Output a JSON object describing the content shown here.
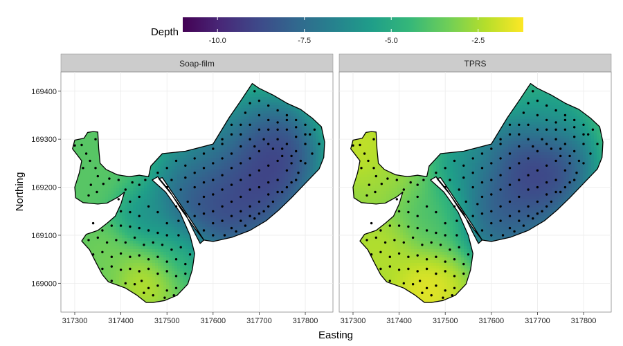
{
  "chart_data": {
    "type": "heatmap",
    "title": "",
    "xlabel": "Easting",
    "ylabel": "Northing",
    "xlim": [
      317270,
      317860
    ],
    "ylim": [
      168940,
      169440
    ],
    "x_ticks": [
      "317300",
      "317400",
      "317500",
      "317600",
      "317700",
      "317800"
    ],
    "x_tick_values": [
      317300,
      317400,
      317500,
      317600,
      317700,
      317800
    ],
    "y_ticks": [
      "169000",
      "169100",
      "169200",
      "169300",
      "169400"
    ],
    "y_tick_values": [
      169000,
      169100,
      169200,
      169300,
      169400
    ],
    "grid": true,
    "legend": {
      "title": "Depth",
      "placement": "top",
      "range": [
        -11,
        -1.2
      ],
      "ticks": [
        "-10.0",
        "-7.5",
        "-5.0",
        "-2.5"
      ],
      "tick_values": [
        -10,
        -7.5,
        -5,
        -2.5
      ],
      "palette": "viridis",
      "colors": [
        "#440154",
        "#482878",
        "#3e4989",
        "#31688e",
        "#26828e",
        "#1f9e89",
        "#35b779",
        "#6ece58",
        "#b5de2b",
        "#fde725"
      ]
    },
    "panels": [
      {
        "label": "Soap-film",
        "features": [
          {
            "x": 317665,
            "y": 169215,
            "depth": -10.8,
            "spread": 105
          },
          {
            "x": 317720,
            "y": 169275,
            "depth": -10.4,
            "spread": 80
          },
          {
            "x": 317590,
            "y": 169175,
            "depth": -9.6,
            "spread": 95
          },
          {
            "x": 317600,
            "y": 169300,
            "depth": -5.5,
            "spread": 110
          },
          {
            "x": 317460,
            "y": 169010,
            "depth": -1.6,
            "spread": 55
          },
          {
            "x": 317380,
            "y": 169060,
            "depth": -3.2,
            "spread": 55
          },
          {
            "x": 317450,
            "y": 169140,
            "depth": -6.3,
            "spread": 55
          },
          {
            "x": 317350,
            "y": 169260,
            "depth": -3.8,
            "spread": 90
          },
          {
            "x": 317520,
            "y": 169060,
            "depth": -4.8,
            "spread": 60
          }
        ],
        "background_depth": -3.8
      },
      {
        "label": "TPRS",
        "features": [
          {
            "x": 317710,
            "y": 169245,
            "depth": -10.6,
            "spread": 90
          },
          {
            "x": 317640,
            "y": 169200,
            "depth": -9.8,
            "spread": 95
          },
          {
            "x": 317630,
            "y": 169125,
            "depth": -8.4,
            "spread": 70
          },
          {
            "x": 317720,
            "y": 169360,
            "depth": -5.8,
            "spread": 80
          },
          {
            "x": 317555,
            "y": 169245,
            "depth": -6.2,
            "spread": 70
          },
          {
            "x": 317460,
            "y": 168985,
            "depth": -1.2,
            "spread": 60
          },
          {
            "x": 317360,
            "y": 169070,
            "depth": -2.1,
            "spread": 60
          },
          {
            "x": 317320,
            "y": 169280,
            "depth": -1.8,
            "spread": 60
          },
          {
            "x": 317470,
            "y": 169150,
            "depth": -4.2,
            "spread": 70
          },
          {
            "x": 317380,
            "y": 169225,
            "depth": -2.6,
            "spread": 60
          }
        ],
        "background_depth": -3.0
      }
    ],
    "boundary": {
      "outer": [
        [
          317340,
          169316
        ],
        [
          317350,
          169315
        ],
        [
          317352,
          169280
        ],
        [
          317355,
          169250
        ],
        [
          317368,
          169237
        ],
        [
          317392,
          169226
        ],
        [
          317418,
          169222
        ],
        [
          317440,
          169225
        ],
        [
          317460,
          169222
        ],
        [
          317465,
          169244
        ],
        [
          317490,
          169270
        ],
        [
          317540,
          169275
        ],
        [
          317600,
          169290
        ],
        [
          317635,
          169345
        ],
        [
          317660,
          169380
        ],
        [
          317685,
          169416
        ],
        [
          317700,
          169406
        ],
        [
          317730,
          169392
        ],
        [
          317760,
          169375
        ],
        [
          317790,
          169362
        ],
        [
          317815,
          169344
        ],
        [
          317835,
          169326
        ],
        [
          317842,
          169294
        ],
        [
          317840,
          169262
        ],
        [
          317830,
          169238
        ],
        [
          317802,
          169210
        ],
        [
          317770,
          169178
        ],
        [
          317742,
          169152
        ],
        [
          317715,
          169130
        ],
        [
          317680,
          169110
        ],
        [
          317642,
          169096
        ],
        [
          317600,
          169087
        ],
        [
          317580,
          169090
        ],
        [
          317560,
          169115
        ],
        [
          317530,
          169155
        ],
        [
          317505,
          169193
        ],
        [
          317480,
          169222
        ],
        [
          317468,
          169215
        ],
        [
          317497,
          169190
        ],
        [
          317528,
          169148
        ],
        [
          317550,
          169100
        ],
        [
          317560,
          169062
        ],
        [
          317555,
          169028
        ],
        [
          317545,
          168998
        ],
        [
          317522,
          168975
        ],
        [
          317495,
          168964
        ],
        [
          317470,
          168960
        ],
        [
          317455,
          168960
        ],
        [
          317435,
          168975
        ],
        [
          317410,
          168990
        ],
        [
          317390,
          168997
        ],
        [
          317373,
          169003
        ],
        [
          317360,
          169018
        ],
        [
          317345,
          169045
        ],
        [
          317332,
          169070
        ],
        [
          317315,
          169088
        ],
        [
          317325,
          169102
        ],
        [
          317350,
          169110
        ],
        [
          317370,
          169125
        ],
        [
          317388,
          169140
        ],
        [
          317400,
          169165
        ],
        [
          317408,
          169190
        ],
        [
          317395,
          169180
        ],
        [
          317370,
          169167
        ],
        [
          317350,
          169165
        ],
        [
          317318,
          169168
        ],
        [
          317302,
          169178
        ],
        [
          317300,
          169200
        ],
        [
          317310,
          169230
        ],
        [
          317315,
          169255
        ],
        [
          317295,
          169280
        ],
        [
          317300,
          169298
        ],
        [
          317320,
          169302
        ],
        [
          317328,
          169314
        ]
      ],
      "hole": [
        [
          317482,
          169218
        ],
        [
          317510,
          169185
        ],
        [
          317540,
          169145
        ],
        [
          317560,
          169105
        ],
        [
          317572,
          169083
        ],
        [
          317580,
          169090
        ],
        [
          317560,
          169120
        ],
        [
          317532,
          169160
        ],
        [
          317506,
          169197
        ],
        [
          317490,
          169220
        ]
      ]
    },
    "sample_points": [
      [
        317300,
        169287
      ],
      [
        317315,
        169288
      ],
      [
        317325,
        169270
      ],
      [
        317345,
        169300
      ],
      [
        317333,
        169255
      ],
      [
        317318,
        169240
      ],
      [
        317345,
        169240
      ],
      [
        317335,
        169205
      ],
      [
        317350,
        169223
      ],
      [
        317362,
        169207
      ],
      [
        317348,
        169190
      ],
      [
        317330,
        169183
      ],
      [
        317375,
        169218
      ],
      [
        317395,
        169215
      ],
      [
        317410,
        169195
      ],
      [
        317425,
        169210
      ],
      [
        317440,
        169205
      ],
      [
        317453,
        169215
      ],
      [
        317395,
        169175
      ],
      [
        317420,
        169170
      ],
      [
        317440,
        169180
      ],
      [
        317460,
        169160
      ],
      [
        317400,
        169150
      ],
      [
        317420,
        169148
      ],
      [
        317440,
        169140
      ],
      [
        317480,
        169148
      ],
      [
        317500,
        169125
      ],
      [
        317340,
        169125
      ],
      [
        317360,
        169110
      ],
      [
        317380,
        169120
      ],
      [
        317400,
        169120
      ],
      [
        317420,
        169118
      ],
      [
        317440,
        169115
      ],
      [
        317460,
        169110
      ],
      [
        317480,
        169105
      ],
      [
        317500,
        169100
      ],
      [
        317525,
        169100
      ],
      [
        317330,
        169090
      ],
      [
        317350,
        169095
      ],
      [
        317370,
        169085
      ],
      [
        317390,
        169090
      ],
      [
        317410,
        169085
      ],
      [
        317430,
        169095
      ],
      [
        317450,
        169080
      ],
      [
        317470,
        169085
      ],
      [
        317490,
        169080
      ],
      [
        317510,
        169070
      ],
      [
        317530,
        169075
      ],
      [
        317550,
        169060
      ],
      [
        317340,
        169060
      ],
      [
        317360,
        169065
      ],
      [
        317380,
        169055
      ],
      [
        317400,
        169062
      ],
      [
        317420,
        169055
      ],
      [
        317440,
        169058
      ],
      [
        317460,
        169050
      ],
      [
        317480,
        169055
      ],
      [
        317500,
        169045
      ],
      [
        317520,
        169050
      ],
      [
        317540,
        169040
      ],
      [
        317360,
        169030
      ],
      [
        317380,
        169035
      ],
      [
        317400,
        169028
      ],
      [
        317420,
        169030
      ],
      [
        317440,
        169025
      ],
      [
        317460,
        169030
      ],
      [
        317480,
        169020
      ],
      [
        317500,
        169025
      ],
      [
        317520,
        169015
      ],
      [
        317540,
        169020
      ],
      [
        317380,
        169005
      ],
      [
        317410,
        169000
      ],
      [
        317430,
        168998
      ],
      [
        317445,
        169005
      ],
      [
        317460,
        168990
      ],
      [
        317480,
        168995
      ],
      [
        317500,
        168985
      ],
      [
        317520,
        168990
      ],
      [
        317470,
        168975
      ],
      [
        317495,
        168970
      ],
      [
        317515,
        168975
      ],
      [
        317450,
        168980
      ],
      [
        317525,
        169130
      ],
      [
        317520,
        169160
      ],
      [
        317480,
        169230
      ],
      [
        317500,
        169240
      ],
      [
        317520,
        169255
      ],
      [
        317540,
        169245
      ],
      [
        317560,
        169260
      ],
      [
        317580,
        169270
      ],
      [
        317600,
        169280
      ],
      [
        317620,
        169290
      ],
      [
        317640,
        169310
      ],
      [
        317660,
        169330
      ],
      [
        317670,
        169355
      ],
      [
        317680,
        169375
      ],
      [
        317690,
        169400
      ],
      [
        317700,
        169380
      ],
      [
        317720,
        169370
      ],
      [
        317740,
        169360
      ],
      [
        317760,
        169350
      ],
      [
        317780,
        169340
      ],
      [
        317800,
        169330
      ],
      [
        317820,
        169320
      ],
      [
        317830,
        169290
      ],
      [
        317815,
        169270
      ],
      [
        317800,
        169250
      ],
      [
        317785,
        169230
      ],
      [
        317770,
        169210
      ],
      [
        317750,
        169190
      ],
      [
        317730,
        169170
      ],
      [
        317710,
        169150
      ],
      [
        317690,
        169135
      ],
      [
        317670,
        169120
      ],
      [
        317650,
        169108
      ],
      [
        317625,
        169100
      ],
      [
        317600,
        169100
      ],
      [
        317580,
        169110
      ],
      [
        317560,
        169140
      ],
      [
        317545,
        169170
      ],
      [
        317530,
        169195
      ],
      [
        317510,
        169215
      ],
      [
        317500,
        169200
      ],
      [
        317540,
        169220
      ],
      [
        317560,
        169230
      ],
      [
        317580,
        169240
      ],
      [
        317600,
        169250
      ],
      [
        317620,
        169260
      ],
      [
        317640,
        169270
      ],
      [
        317660,
        169285
      ],
      [
        317680,
        169300
      ],
      [
        317700,
        169320
      ],
      [
        317720,
        169340
      ],
      [
        317740,
        169335
      ],
      [
        317760,
        169320
      ],
      [
        317780,
        169305
      ],
      [
        317800,
        169290
      ],
      [
        317810,
        169310
      ],
      [
        317560,
        169200
      ],
      [
        317580,
        169210
      ],
      [
        317600,
        169215
      ],
      [
        317620,
        169225
      ],
      [
        317640,
        169240
      ],
      [
        317660,
        169250
      ],
      [
        317680,
        169260
      ],
      [
        317700,
        169275
      ],
      [
        317720,
        169290
      ],
      [
        317740,
        169300
      ],
      [
        317760,
        169290
      ],
      [
        317780,
        169275
      ],
      [
        317790,
        169255
      ],
      [
        317770,
        169250
      ],
      [
        317750,
        169265
      ],
      [
        317580,
        169180
      ],
      [
        317600,
        169185
      ],
      [
        317620,
        169195
      ],
      [
        317640,
        169205
      ],
      [
        317660,
        169215
      ],
      [
        317680,
        169225
      ],
      [
        317700,
        169235
      ],
      [
        317720,
        169245
      ],
      [
        317740,
        169255
      ],
      [
        317760,
        169235
      ],
      [
        317740,
        169215
      ],
      [
        317720,
        169210
      ],
      [
        317700,
        169200
      ],
      [
        317680,
        169195
      ],
      [
        317660,
        169180
      ],
      [
        317640,
        169170
      ],
      [
        317620,
        169160
      ],
      [
        317600,
        169150
      ],
      [
        317580,
        169145
      ],
      [
        317570,
        169165
      ],
      [
        317600,
        169125
      ],
      [
        317620,
        169130
      ],
      [
        317640,
        169140
      ],
      [
        317660,
        169150
      ],
      [
        317680,
        169160
      ],
      [
        317700,
        169170
      ],
      [
        317720,
        169185
      ],
      [
        317740,
        169190
      ],
      [
        317760,
        169200
      ],
      [
        317780,
        169215
      ],
      [
        317640,
        169115
      ],
      [
        317660,
        169130
      ],
      [
        317680,
        169140
      ],
      [
        317700,
        169145
      ],
      [
        317720,
        169160
      ],
      [
        317620,
        169300
      ],
      [
        317640,
        169330
      ],
      [
        317660,
        169310
      ],
      [
        317680,
        169330
      ],
      [
        317700,
        169350
      ],
      [
        317720,
        169320
      ],
      [
        317740,
        169320
      ],
      [
        317760,
        169340
      ],
      [
        317780,
        169325
      ],
      [
        317800,
        169310
      ],
      [
        317690,
        169285
      ],
      [
        317710,
        169300
      ],
      [
        317730,
        169280
      ],
      [
        317750,
        169280
      ],
      [
        317770,
        169265
      ]
    ]
  }
}
